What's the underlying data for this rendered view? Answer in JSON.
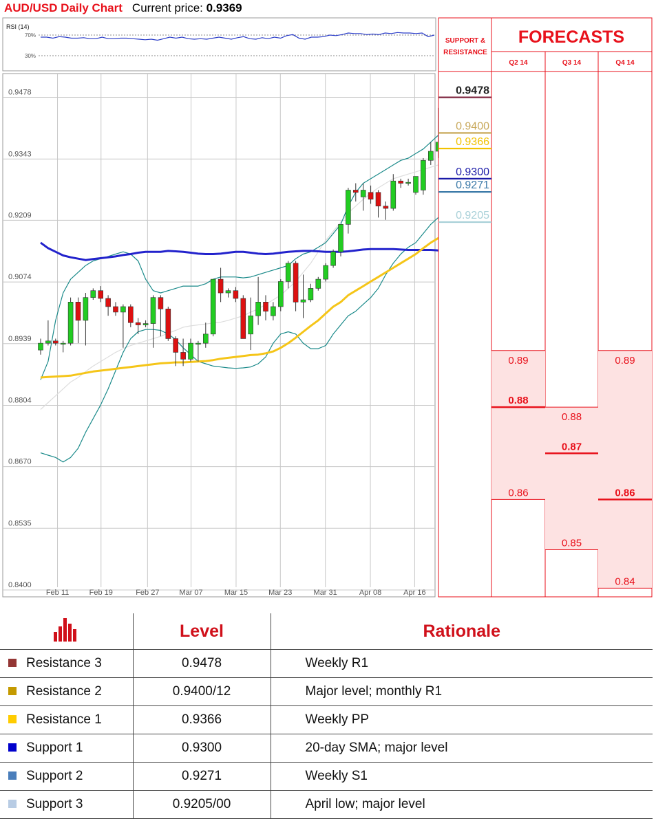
{
  "header": {
    "title": "AUD/USD Daily Chart",
    "price_label": "Current price:",
    "price": "0.9369"
  },
  "rsi": {
    "label": "RSI (14)",
    "levels": [
      "70%",
      "30%"
    ],
    "values": [
      66,
      66,
      64,
      67,
      66,
      64,
      64,
      65,
      63,
      63,
      66,
      63,
      63,
      64,
      64,
      63,
      62,
      61,
      62,
      60,
      63,
      66,
      64,
      66,
      63,
      62,
      63,
      62,
      64,
      66,
      64,
      62,
      65,
      67,
      63,
      62,
      65,
      63,
      66,
      64,
      69,
      71,
      64,
      62,
      66,
      66,
      67,
      70,
      69,
      71,
      74,
      73,
      73,
      71,
      72,
      71,
      74,
      73,
      75,
      74,
      74,
      73,
      74,
      67,
      70
    ]
  },
  "chart_data": {
    "type": "candlestick",
    "title": "AUD/USD Daily Chart",
    "ylim": [
      0.8385,
      0.953
    ],
    "yticks": [
      0.9478,
      0.9343,
      0.9209,
      0.9074,
      0.8939,
      0.8804,
      0.867,
      0.8535,
      0.84
    ],
    "ytick_labels": [
      "0.9478",
      "0.9343",
      "0.9209",
      "0.9074",
      "0.8939",
      "0.8804",
      "0.8670",
      "0.8535",
      "0.8400"
    ],
    "xtick_labels": [
      "Feb 11",
      "Feb 19",
      "Feb 27",
      "Mar 07",
      "Mar 15",
      "Mar 23",
      "Mar 31",
      "Apr 08",
      "Apr 16"
    ],
    "xtick_index": [
      0.6,
      6.4,
      12.6,
      18.4,
      24.4,
      30.3,
      36.3,
      42.3,
      48.2
    ],
    "candles": [
      {
        "o": 0.8925,
        "h": 0.895,
        "l": 0.8915,
        "c": 0.894
      },
      {
        "o": 0.894,
        "h": 0.899,
        "l": 0.8935,
        "c": 0.8945
      },
      {
        "o": 0.8945,
        "h": 0.895,
        "l": 0.8935,
        "c": 0.894
      },
      {
        "o": 0.894,
        "h": 0.8945,
        "l": 0.892,
        "c": 0.894
      },
      {
        "o": 0.894,
        "h": 0.904,
        "l": 0.8935,
        "c": 0.903
      },
      {
        "o": 0.903,
        "h": 0.904,
        "l": 0.894,
        "c": 0.899
      },
      {
        "o": 0.899,
        "h": 0.905,
        "l": 0.8935,
        "c": 0.904
      },
      {
        "o": 0.904,
        "h": 0.906,
        "l": 0.9035,
        "c": 0.9055
      },
      {
        "o": 0.9055,
        "h": 0.9065,
        "l": 0.903,
        "c": 0.9038
      },
      {
        "o": 0.9038,
        "h": 0.9045,
        "l": 0.9,
        "c": 0.902
      },
      {
        "o": 0.902,
        "h": 0.903,
        "l": 0.9,
        "c": 0.9008
      },
      {
        "o": 0.9008,
        "h": 0.9025,
        "l": 0.893,
        "c": 0.902
      },
      {
        "o": 0.902,
        "h": 0.9025,
        "l": 0.8975,
        "c": 0.8985
      },
      {
        "o": 0.8985,
        "h": 0.8995,
        "l": 0.896,
        "c": 0.898
      },
      {
        "o": 0.898,
        "h": 0.899,
        "l": 0.8975,
        "c": 0.8983
      },
      {
        "o": 0.8983,
        "h": 0.9045,
        "l": 0.893,
        "c": 0.904
      },
      {
        "o": 0.904,
        "h": 0.9045,
        "l": 0.8955,
        "c": 0.9015
      },
      {
        "o": 0.9015,
        "h": 0.902,
        "l": 0.8945,
        "c": 0.895
      },
      {
        "o": 0.895,
        "h": 0.8955,
        "l": 0.889,
        "c": 0.892
      },
      {
        "o": 0.892,
        "h": 0.895,
        "l": 0.889,
        "c": 0.8905
      },
      {
        "o": 0.8905,
        "h": 0.895,
        "l": 0.89,
        "c": 0.894
      },
      {
        "o": 0.894,
        "h": 0.8945,
        "l": 0.89,
        "c": 0.894
      },
      {
        "o": 0.894,
        "h": 0.8985,
        "l": 0.893,
        "c": 0.896
      },
      {
        "o": 0.896,
        "h": 0.908,
        "l": 0.8955,
        "c": 0.908
      },
      {
        "o": 0.908,
        "h": 0.9105,
        "l": 0.903,
        "c": 0.905
      },
      {
        "o": 0.905,
        "h": 0.906,
        "l": 0.904,
        "c": 0.9055
      },
      {
        "o": 0.9055,
        "h": 0.9063,
        "l": 0.903,
        "c": 0.9038
      },
      {
        "o": 0.9038,
        "h": 0.9045,
        "l": 0.895,
        "c": 0.895
      },
      {
        "o": 0.896,
        "h": 0.904,
        "l": 0.8925,
        "c": 0.9
      },
      {
        "o": 0.9,
        "h": 0.9085,
        "l": 0.898,
        "c": 0.903
      },
      {
        "o": 0.903,
        "h": 0.9045,
        "l": 0.899,
        "c": 0.901
      },
      {
        "o": 0.9,
        "h": 0.903,
        "l": 0.899,
        "c": 0.902
      },
      {
        "o": 0.902,
        "h": 0.908,
        "l": 0.901,
        "c": 0.9075
      },
      {
        "o": 0.9075,
        "h": 0.912,
        "l": 0.906,
        "c": 0.9115
      },
      {
        "o": 0.9115,
        "h": 0.912,
        "l": 0.901,
        "c": 0.903
      },
      {
        "o": 0.903,
        "h": 0.909,
        "l": 0.8995,
        "c": 0.9035
      },
      {
        "o": 0.9035,
        "h": 0.907,
        "l": 0.903,
        "c": 0.906
      },
      {
        "o": 0.906,
        "h": 0.9085,
        "l": 0.9055,
        "c": 0.908
      },
      {
        "o": 0.908,
        "h": 0.9115,
        "l": 0.9075,
        "c": 0.911
      },
      {
        "o": 0.911,
        "h": 0.9145,
        "l": 0.9105,
        "c": 0.914
      },
      {
        "o": 0.914,
        "h": 0.92,
        "l": 0.913,
        "c": 0.92
      },
      {
        "o": 0.92,
        "h": 0.928,
        "l": 0.918,
        "c": 0.9275
      },
      {
        "o": 0.9275,
        "h": 0.929,
        "l": 0.925,
        "c": 0.927
      },
      {
        "o": 0.926,
        "h": 0.929,
        "l": 0.923,
        "c": 0.9275
      },
      {
        "o": 0.927,
        "h": 0.9285,
        "l": 0.9245,
        "c": 0.9255
      },
      {
        "o": 0.927,
        "h": 0.9275,
        "l": 0.9215,
        "c": 0.924
      },
      {
        "o": 0.924,
        "h": 0.925,
        "l": 0.921,
        "c": 0.9235
      },
      {
        "o": 0.9235,
        "h": 0.931,
        "l": 0.923,
        "c": 0.9295
      },
      {
        "o": 0.9295,
        "h": 0.93,
        "l": 0.928,
        "c": 0.929
      },
      {
        "o": 0.929,
        "h": 0.93,
        "l": 0.9285,
        "c": 0.9292
      },
      {
        "o": 0.927,
        "h": 0.9305,
        "l": 0.9265,
        "c": 0.9305
      },
      {
        "o": 0.9275,
        "h": 0.9345,
        "l": 0.9265,
        "c": 0.934
      },
      {
        "o": 0.934,
        "h": 0.938,
        "l": 0.933,
        "c": 0.936
      },
      {
        "o": 0.936,
        "h": 0.9455,
        "l": 0.9345,
        "c": 0.938
      },
      {
        "o": 0.938,
        "h": 0.941,
        "l": 0.9365,
        "c": 0.9375
      },
      {
        "o": 0.9375,
        "h": 0.944,
        "l": 0.936,
        "c": 0.937
      },
      {
        "o": 0.937,
        "h": 0.938,
        "l": 0.9355,
        "c": 0.937
      },
      {
        "o": 0.937,
        "h": 0.941,
        "l": 0.936,
        "c": 0.9395
      },
      {
        "o": 0.9395,
        "h": 0.941,
        "l": 0.932,
        "c": 0.9325
      },
      {
        "o": 0.933,
        "h": 0.9365,
        "l": 0.932,
        "c": 0.9358
      }
    ],
    "sma_blue": [
      0.916,
      0.9148,
      0.914,
      0.9132,
      0.9128,
      0.9125,
      0.9122,
      0.9124,
      0.9126,
      0.9128,
      0.913,
      0.9133,
      0.9135,
      0.9138,
      0.914,
      0.914,
      0.914,
      0.9142,
      0.9141,
      0.914,
      0.9138,
      0.9136,
      0.9135,
      0.9135,
      0.9136,
      0.9138,
      0.914,
      0.914,
      0.9138,
      0.9136,
      0.9135,
      0.9136,
      0.9138,
      0.914,
      0.9141,
      0.9142,
      0.9142,
      0.9141,
      0.914,
      0.914,
      0.914,
      0.9141,
      0.9143,
      0.9145,
      0.9146,
      0.9146,
      0.9146,
      0.9146,
      0.9145,
      0.9144,
      0.9144,
      0.9144,
      0.9144,
      0.9143,
      0.9143,
      0.9143,
      0.9143,
      0.9143,
      0.9142,
      0.9142
    ],
    "sma_yellow": [
      0.8865,
      0.8866,
      0.8867,
      0.8868,
      0.8869,
      0.8872,
      0.8875,
      0.8878,
      0.888,
      0.8882,
      0.8884,
      0.8886,
      0.8888,
      0.889,
      0.8892,
      0.8894,
      0.8896,
      0.8897,
      0.8898,
      0.8898,
      0.8899,
      0.89,
      0.8901,
      0.8903,
      0.8906,
      0.8908,
      0.891,
      0.8912,
      0.8914,
      0.8915,
      0.8918,
      0.8922,
      0.893,
      0.894,
      0.8952,
      0.8965,
      0.8978,
      0.899,
      0.9005,
      0.902,
      0.903,
      0.9045,
      0.9055,
      0.9065,
      0.9075,
      0.9085,
      0.9095,
      0.9105,
      0.9115,
      0.9125,
      0.9135,
      0.9148,
      0.916,
      0.917,
      0.918,
      0.919,
      0.92,
      0.921,
      0.922,
      0.923
    ],
    "bb_upper": [
      0.886,
      0.89,
      0.899,
      0.905,
      0.908,
      0.9095,
      0.911,
      0.912,
      0.9125,
      0.913,
      0.9135,
      0.914,
      0.9135,
      0.912,
      0.908,
      0.9055,
      0.905,
      0.9055,
      0.906,
      0.9065,
      0.9065,
      0.9065,
      0.907,
      0.908,
      0.9085,
      0.9085,
      0.9085,
      0.9083,
      0.9085,
      0.909,
      0.9095,
      0.91,
      0.9105,
      0.911,
      0.9125,
      0.9135,
      0.914,
      0.915,
      0.916,
      0.918,
      0.92,
      0.924,
      0.927,
      0.929,
      0.93,
      0.931,
      0.932,
      0.933,
      0.934,
      0.9345,
      0.9355,
      0.9365,
      0.938,
      0.9395,
      0.94,
      0.9405,
      0.941,
      0.9412,
      0.9415,
      0.9418
    ],
    "bb_lower": [
      0.87,
      0.8695,
      0.869,
      0.868,
      0.869,
      0.871,
      0.8745,
      0.8775,
      0.8805,
      0.884,
      0.888,
      0.892,
      0.895,
      0.8965,
      0.897,
      0.897,
      0.8968,
      0.896,
      0.8948,
      0.893,
      0.8915,
      0.89,
      0.8895,
      0.889,
      0.8888,
      0.8886,
      0.8885,
      0.8886,
      0.8888,
      0.8895,
      0.891,
      0.894,
      0.896,
      0.8965,
      0.896,
      0.894,
      0.8928,
      0.8928,
      0.8935,
      0.896,
      0.898,
      0.9,
      0.901,
      0.9025,
      0.904,
      0.906,
      0.909,
      0.9115,
      0.9135,
      0.915,
      0.916,
      0.918,
      0.92,
      0.9215,
      0.9225
    ],
    "ma_gray": [
      0.8795,
      0.881,
      0.8825,
      0.884,
      0.8855,
      0.8865,
      0.8878,
      0.889,
      0.89,
      0.891,
      0.892,
      0.8928,
      0.8935,
      0.894,
      0.8945,
      0.895,
      0.8955,
      0.8962,
      0.8968,
      0.8975,
      0.8978,
      0.898,
      0.8982,
      0.8984,
      0.8986,
      0.899,
      0.8995,
      0.9,
      0.9008,
      0.9015,
      0.9025,
      0.9035,
      0.9045,
      0.906,
      0.9075,
      0.9095,
      0.9115,
      0.914,
      0.9165,
      0.9185,
      0.9205,
      0.9225,
      0.924,
      0.9255,
      0.9268,
      0.928,
      0.929,
      0.93,
      0.9305,
      0.931,
      0.9315,
      0.932,
      0.9325,
      0.933,
      0.9335,
      0.934,
      0.9345,
      0.9345
    ],
    "levels": [
      {
        "value": 0.9478,
        "label": "0.9478",
        "color": "#7a1f3a",
        "box": true,
        "bold": true
      },
      {
        "value": 0.94,
        "label": "0.9400",
        "color": "#c8a85a",
        "box": false,
        "bold": false
      },
      {
        "value": 0.9366,
        "label": "0.9366",
        "color": "#f2c200",
        "box": false,
        "bold": false
      },
      {
        "value": 0.93,
        "label": "0.9300",
        "color": "#1a1aa8",
        "box": false,
        "bold": false
      },
      {
        "value": 0.9271,
        "label": "0.9271",
        "color": "#3c7aa8",
        "box": false,
        "bold": false
      },
      {
        "value": 0.9205,
        "label": "0.9205",
        "color": "#a8d0d8",
        "box": false,
        "bold": false
      }
    ]
  },
  "forecasts": {
    "title": "FORECASTS",
    "sr_label": [
      "SUPPORT &",
      "RESISTANCE"
    ],
    "columns": [
      {
        "label": "Q2 14",
        "high": 0.8924,
        "mid": 0.88,
        "low": 0.8598,
        "labels": [
          "0.89",
          "0.88",
          "0.86"
        ]
      },
      {
        "label": "Q3 14",
        "high": 0.88,
        "mid": 0.8699,
        "low": 0.8488,
        "labels": [
          "0.88",
          "0.87",
          "0.85"
        ]
      },
      {
        "label": "Q4 14",
        "high": 0.8924,
        "mid": 0.8598,
        "low": 0.8404,
        "labels": [
          "0.89",
          "0.86",
          "0.84"
        ]
      }
    ]
  },
  "table": {
    "headers": {
      "level": "Level",
      "rationale": "Rationale"
    },
    "rows": [
      {
        "name": "Resistance 3",
        "level": "0.9478",
        "rationale": "Weekly R1",
        "color": "#943634"
      },
      {
        "name": "Resistance 2",
        "level": "0.9400/12",
        "rationale": "Major level; monthly R1",
        "color": "#c49a00"
      },
      {
        "name": "Resistance 1",
        "level": "0.9366",
        "rationale": "Weekly PP",
        "color": "#ffcc00"
      },
      {
        "name": "Support 1",
        "level": "0.9300",
        "rationale": "20-day SMA; major level",
        "color": "#0000cc"
      },
      {
        "name": "Support 2",
        "level": "0.9271",
        "rationale": "Weekly S1",
        "color": "#4a7ebb"
      },
      {
        "name": "Support 3",
        "level": "0.9205/00",
        "rationale": "April low; major level",
        "color": "#b8cce4"
      }
    ]
  },
  "colors": {
    "red": "#e8111b",
    "bull": "#22cc22",
    "bear": "#dd1111",
    "blue_sma": "#2222cc",
    "yellow_sma": "#f5c518",
    "band": "#1a8a8a",
    "grid": "#c8c8c8"
  }
}
